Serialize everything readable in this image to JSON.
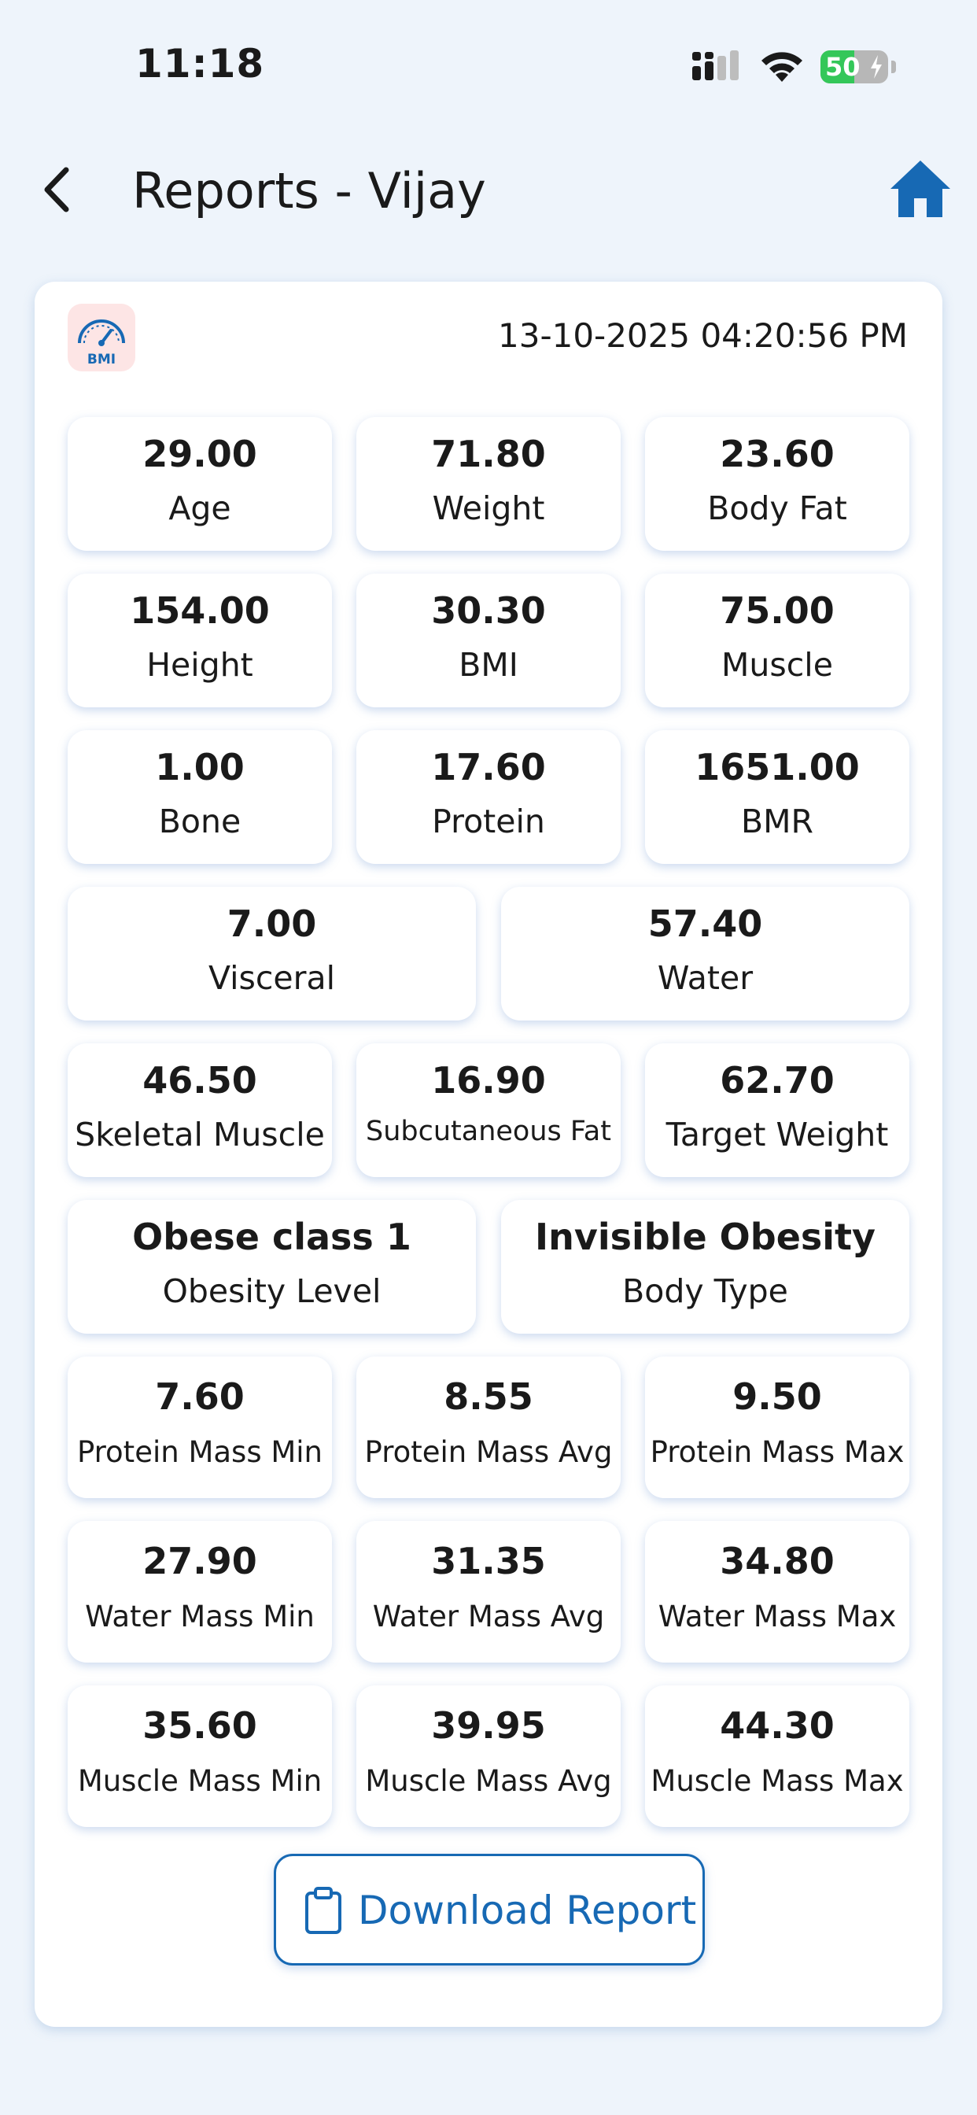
{
  "status_bar": {
    "time": "11:18",
    "battery_level": "50",
    "battery_fraction": 0.5,
    "icons": [
      "signal-icon",
      "wifi-icon",
      "battery-icon"
    ]
  },
  "header": {
    "title": "Reports - Vijay",
    "back_icon": "chevron-left-icon",
    "home_icon": "home-icon",
    "accent_color": "#1769b4"
  },
  "report": {
    "badge_icon": "bmi-gauge-icon",
    "badge_text": "BMI",
    "timestamp": "13-10-2025 04:20:56 PM",
    "metrics": [
      {
        "value": "29.00",
        "label": "Age"
      },
      {
        "value": "71.80",
        "label": "Weight"
      },
      {
        "value": "23.60",
        "label": "Body Fat"
      },
      {
        "value": "154.00",
        "label": "Height"
      },
      {
        "value": "30.30",
        "label": "BMI"
      },
      {
        "value": "75.00",
        "label": "Muscle"
      },
      {
        "value": "1.00",
        "label": "Bone"
      },
      {
        "value": "17.60",
        "label": "Protein"
      },
      {
        "value": "1651.00",
        "label": "BMR"
      },
      {
        "value": "7.00",
        "label": "Visceral"
      },
      {
        "value": "57.40",
        "label": "Water"
      },
      {
        "value": "46.50",
        "label": "Skeletal Muscle"
      },
      {
        "value": "16.90",
        "label": "Subcutaneous Fat"
      },
      {
        "value": "62.70",
        "label": "Target Weight"
      },
      {
        "value": "Obese class 1",
        "label": "Obesity Level"
      },
      {
        "value": "Invisible Obesity",
        "label": "Body Type"
      },
      {
        "value": "7.60",
        "label": "Protein Mass Min"
      },
      {
        "value": "8.55",
        "label": "Protein Mass Avg"
      },
      {
        "value": "9.50",
        "label": "Protein Mass Max"
      },
      {
        "value": "27.90",
        "label": "Water Mass Min"
      },
      {
        "value": "31.35",
        "label": "Water Mass Avg"
      },
      {
        "value": "34.80",
        "label": "Water Mass Max"
      },
      {
        "value": "35.60",
        "label": "Muscle Mass Min"
      },
      {
        "value": "39.95",
        "label": "Muscle Mass Avg"
      },
      {
        "value": "44.30",
        "label": "Muscle Mass Max"
      }
    ],
    "download": {
      "label": "Download Report",
      "icon": "clipboard-icon"
    }
  }
}
